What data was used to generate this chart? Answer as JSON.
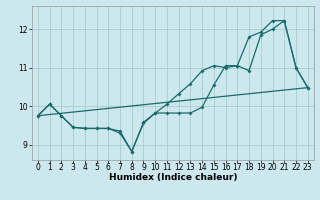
{
  "title": "",
  "xlabel": "Humidex (Indice chaleur)",
  "bg_color": "#cce8ee",
  "grid_color": "#aacccc",
  "line_color": "#1a6b6b",
  "xlim": [
    -0.5,
    23.5
  ],
  "ylim": [
    8.6,
    12.6
  ],
  "xticks": [
    0,
    1,
    2,
    3,
    4,
    5,
    6,
    7,
    8,
    9,
    10,
    11,
    12,
    13,
    14,
    15,
    16,
    17,
    18,
    19,
    20,
    21,
    22,
    23
  ],
  "yticks": [
    9,
    10,
    11,
    12
  ],
  "line1_x": [
    0,
    1,
    2,
    3,
    4,
    5,
    6,
    7,
    8,
    9,
    10,
    11,
    12,
    13,
    14,
    15,
    16,
    17,
    18,
    19,
    20,
    21,
    22,
    23
  ],
  "line1_y": [
    9.75,
    10.05,
    9.75,
    9.45,
    9.42,
    9.42,
    9.42,
    9.3,
    8.82,
    9.55,
    9.82,
    9.82,
    9.82,
    9.82,
    9.97,
    10.55,
    11.05,
    11.05,
    10.92,
    11.85,
    12.0,
    12.22,
    11.0,
    10.48
  ],
  "line2_x": [
    0,
    1,
    2,
    3,
    4,
    5,
    6,
    7,
    8,
    9,
    10,
    11,
    12,
    13,
    14,
    15,
    16,
    17,
    18,
    19,
    20,
    21,
    22,
    23
  ],
  "line2_y": [
    9.75,
    10.05,
    9.75,
    9.45,
    9.42,
    9.42,
    9.42,
    9.35,
    8.82,
    9.58,
    9.82,
    10.05,
    10.32,
    10.58,
    10.92,
    11.05,
    11.0,
    11.05,
    11.8,
    11.92,
    12.22,
    12.22,
    11.0,
    10.48
  ],
  "line3_x": [
    0,
    23
  ],
  "line3_y": [
    9.75,
    10.48
  ],
  "xlabel_fontsize": 6.5,
  "xlabel_fontweight": "bold",
  "tick_fontsize": 5.5
}
